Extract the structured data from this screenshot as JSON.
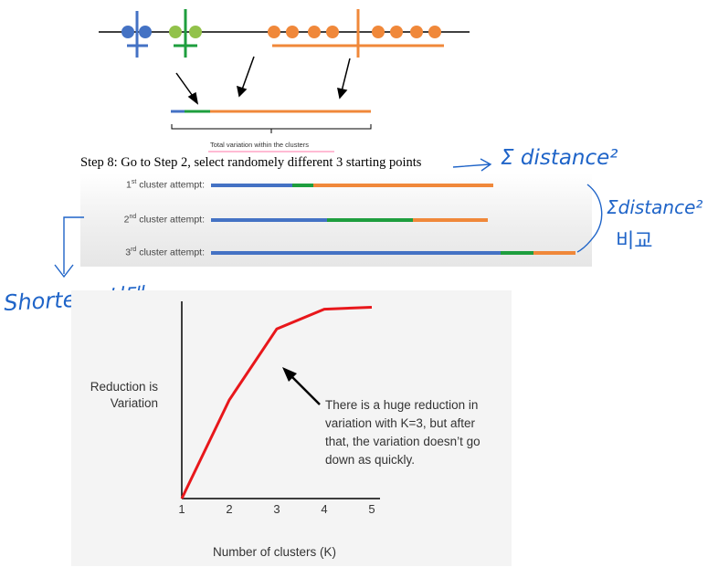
{
  "colors": {
    "blue": "#4472c4",
    "green": "#1e9e3e",
    "orange": "#f0883a",
    "red": "#e8171b",
    "ink": "#1f64c8"
  },
  "top_diagram": {
    "total_label": "Total variation within the clusters"
  },
  "step_text": "Step 8: Go to Step 2, select randomely different 3 starting points",
  "attempts": [
    {
      "label_prefix": "1",
      "label_sup": "st",
      "label_suffix": " cluster attempt:"
    },
    {
      "label_prefix": "2",
      "label_sup": "nd",
      "label_suffix": " cluster attempt:"
    },
    {
      "label_prefix": "3",
      "label_sup": "rd",
      "label_suffix": " cluster attempt:"
    }
  ],
  "handwriting": {
    "sum_distance_1": "Σ distance²",
    "sum_distance_2": "Σdistance²",
    "korean_compare": "비교",
    "shortest": "Shortest 선택"
  },
  "chart_data": {
    "type": "line",
    "x": [
      1,
      2,
      3,
      4,
      5
    ],
    "y": [
      0,
      0.5,
      0.86,
      0.96,
      0.97
    ],
    "xticks": [
      "1",
      "2",
      "3",
      "4",
      "5"
    ],
    "xlabel": "Number of clusters (K)",
    "ylabel_line1": "Reduction is",
    "ylabel_line2": "Variation",
    "annotation_lines": [
      "There is a huge reduction in",
      "variation with K=3, but after",
      "that, the variation doesn’t go",
      "down as quickly."
    ],
    "line_color": "#e8171b"
  }
}
